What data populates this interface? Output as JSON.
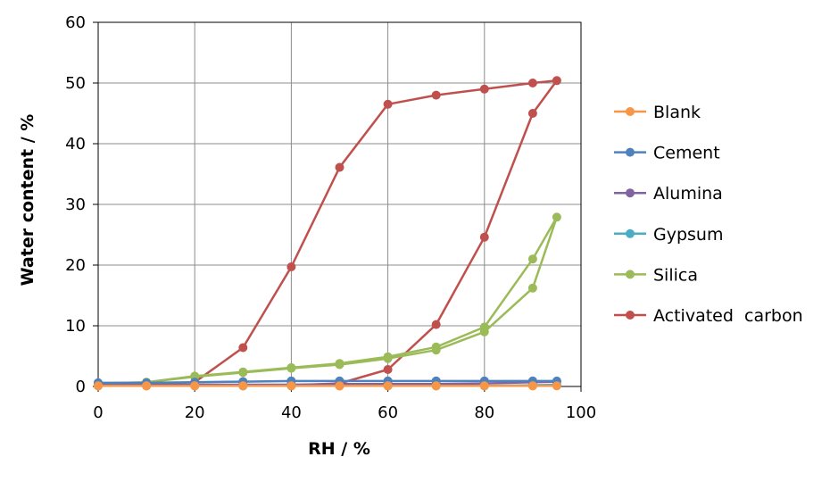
{
  "chart_data": {
    "type": "line",
    "xlabel": "RH / %",
    "ylabel": "Water content / %",
    "xlim": [
      0,
      100
    ],
    "ylim": [
      0,
      60
    ],
    "xticks": [
      0,
      20,
      40,
      60,
      80,
      100
    ],
    "yticks": [
      0,
      10,
      20,
      30,
      40,
      50,
      60
    ],
    "x_tick_labels": [
      "0",
      "20",
      "40",
      "60",
      "80",
      "100"
    ],
    "y_tick_labels": [
      "0",
      "10",
      "20",
      "30",
      "40",
      "50",
      "60"
    ],
    "grid": "both",
    "legend_position": "right",
    "series": [
      {
        "name": "Blank",
        "color": "#F79646",
        "x": [
          0,
          10,
          20,
          30,
          40,
          50,
          60,
          70,
          80,
          90,
          95,
          90,
          80,
          70,
          60,
          50,
          40,
          30,
          20,
          10,
          0
        ],
        "y": [
          0.1,
          0.1,
          0.1,
          0.1,
          0.1,
          0.1,
          0.1,
          0.1,
          0.1,
          0.1,
          0.1,
          0.1,
          0.1,
          0.1,
          0.1,
          0.1,
          0.1,
          0.1,
          0.1,
          0.1,
          0.1
        ]
      },
      {
        "name": "Cement",
        "color": "#4F81BD",
        "x": [
          0,
          10,
          20,
          30,
          40,
          50,
          60,
          70,
          80,
          90,
          95,
          90,
          80,
          70,
          60,
          50,
          40,
          30,
          20,
          10,
          0
        ],
        "y": [
          0.6,
          0.6,
          0.7,
          0.8,
          0.9,
          0.9,
          0.9,
          0.9,
          0.9,
          0.9,
          0.9,
          0.9,
          0.9,
          0.9,
          0.9,
          0.9,
          0.9,
          0.8,
          0.7,
          0.6,
          0.6
        ]
      },
      {
        "name": "Alumina",
        "color": "#8064A2",
        "x": [
          0,
          10,
          20,
          30,
          40,
          50,
          60,
          70,
          80,
          90,
          95,
          90,
          80,
          70,
          60,
          50,
          40,
          30,
          20,
          10,
          0
        ],
        "y": [
          0.3,
          0.3,
          0.3,
          0.3,
          0.3,
          0.4,
          0.4,
          0.4,
          0.5,
          0.7,
          0.8,
          0.7,
          0.5,
          0.4,
          0.4,
          0.4,
          0.3,
          0.3,
          0.3,
          0.3,
          0.3
        ]
      },
      {
        "name": "Gypsum",
        "color": "#4BACC6",
        "x": [
          0,
          10,
          20,
          30,
          40,
          50,
          60,
          70,
          80,
          90,
          95,
          90,
          80,
          70,
          60,
          50,
          40,
          30,
          20,
          10,
          0
        ],
        "y": [
          0.1,
          0.1,
          0.1,
          0.1,
          0.1,
          0.1,
          0.1,
          0.1,
          0.1,
          0.2,
          0.3,
          0.2,
          0.1,
          0.1,
          0.1,
          0.1,
          0.1,
          0.1,
          0.1,
          0.1,
          0.1
        ]
      },
      {
        "name": "Silica",
        "color": "#9BBB59",
        "x": [
          0,
          10,
          20,
          30,
          40,
          50,
          60,
          70,
          80,
          90,
          95,
          90,
          80,
          70,
          60,
          50,
          40,
          30,
          20,
          10,
          0
        ],
        "y": [
          0.5,
          0.7,
          1.6,
          2.3,
          3.0,
          3.6,
          4.6,
          6.0,
          9.0,
          16.2,
          27.9,
          21.0,
          9.8,
          6.5,
          4.9,
          3.8,
          3.1,
          2.4,
          1.7,
          0.7,
          0.5
        ]
      },
      {
        "name": "Activated  carbon",
        "color": "#C0504D",
        "x": [
          0,
          10,
          20,
          30,
          40,
          50,
          60,
          70,
          80,
          90,
          95,
          90,
          80,
          70,
          60,
          50,
          40,
          30,
          20,
          10,
          0
        ],
        "y": [
          0.2,
          0.2,
          0.2,
          0.2,
          0.2,
          0.5,
          2.8,
          10.2,
          24.6,
          45.0,
          50.4,
          50.0,
          49.0,
          48.0,
          46.5,
          36.1,
          19.7,
          6.4,
          0.7,
          0.4,
          0.2
        ]
      }
    ]
  }
}
